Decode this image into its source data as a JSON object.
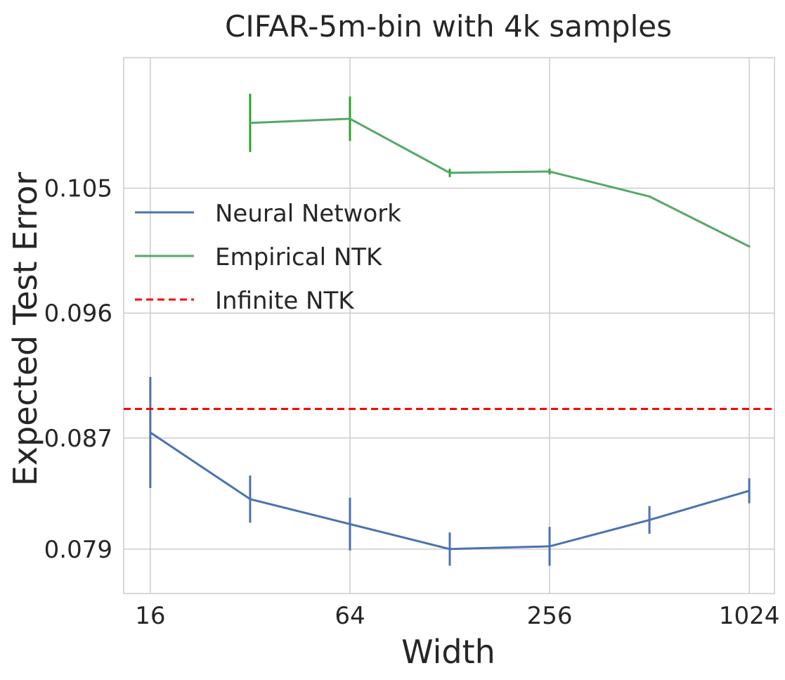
{
  "chart_data": {
    "type": "line",
    "title": "CIFAR-5m-bin with 4k samples",
    "xlabel": "Width",
    "ylabel": "Expected Test Error",
    "xscale": "log2",
    "xlim": [
      13.3,
      1220
    ],
    "ylim": [
      0.0758,
      0.1144
    ],
    "grid": true,
    "legend_position": "upper-left",
    "xticks": [
      16,
      64,
      256,
      1024
    ],
    "xtick_labels": [
      "16",
      "64",
      "256",
      "1024"
    ],
    "yticks": [
      0.079,
      0.087,
      0.096,
      0.105
    ],
    "ytick_labels": [
      "0.079",
      "0.087",
      "0.096",
      "0.105"
    ],
    "series": [
      {
        "name": "Neural Network",
        "color": "#4c72b0",
        "style": "solid",
        "x": [
          16,
          32,
          64,
          128,
          256,
          512,
          1024
        ],
        "y": [
          0.0874,
          0.0826,
          0.0808,
          0.079,
          0.0792,
          0.0811,
          0.0832
        ],
        "err": [
          0.004,
          0.0017,
          0.0019,
          0.0012,
          0.0014,
          0.001,
          0.0009
        ]
      },
      {
        "name": "Empirical NTK",
        "color": "#55a868",
        "errcolor": "#2ca02c",
        "style": "solid",
        "x": [
          32,
          64,
          128,
          256,
          512,
          1024
        ],
        "y": [
          0.1097,
          0.11,
          0.1061,
          0.1062,
          0.1044,
          0.1008
        ],
        "err": [
          0.0021,
          0.0016,
          0.0003,
          0.0002,
          0.0,
          0.0
        ]
      },
      {
        "name": "Infinite NTK",
        "color": "#ff0000",
        "style": "dashed",
        "y_const": 0.0891
      }
    ]
  }
}
